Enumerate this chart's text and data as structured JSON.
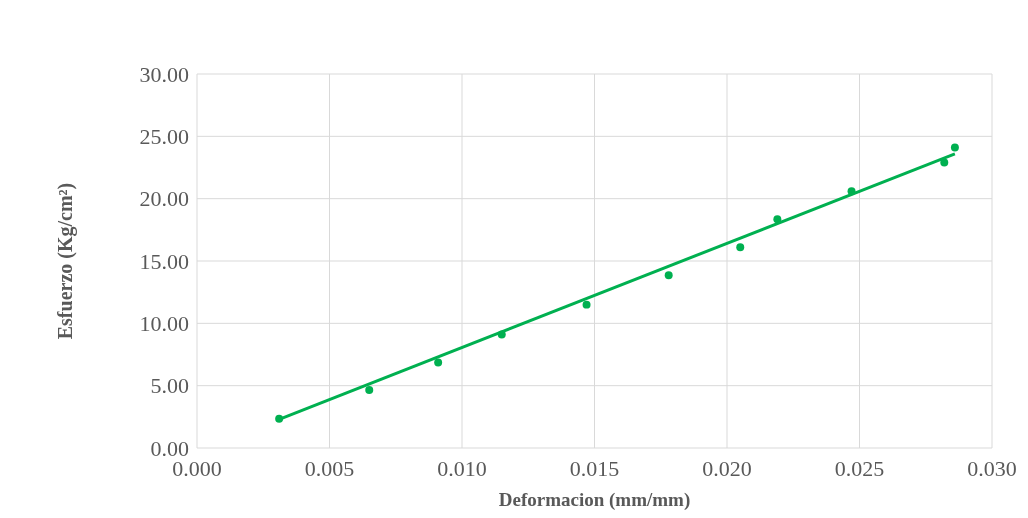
{
  "chart_data": {
    "type": "scatter",
    "xlabel": "Deformacion (mm/mm)",
    "ylabel": "Esfuerzo (Kg/cm²)",
    "xlim": [
      0,
      0.03
    ],
    "xticks": [
      {
        "value": 0,
        "label": "0.000"
      },
      {
        "value": 0.005,
        "label": "0.005"
      },
      {
        "value": 0.01,
        "label": "0.010"
      },
      {
        "value": 0.015,
        "label": "0.015"
      },
      {
        "value": 0.02,
        "label": "0.020"
      },
      {
        "value": 0.025,
        "label": "0.025"
      },
      {
        "value": 0.03,
        "label": "0.030"
      }
    ],
    "ylim": [
      0,
      30
    ],
    "yticks": [
      {
        "value": 0,
        "label": "0.00"
      },
      {
        "value": 5,
        "label": "5.00"
      },
      {
        "value": 10,
        "label": "10.00"
      },
      {
        "value": 15,
        "label": "15.00"
      },
      {
        "value": 20,
        "label": "20.00"
      },
      {
        "value": 25,
        "label": "25.00"
      },
      {
        "value": 30,
        "label": "30.00"
      }
    ],
    "grid": true,
    "series": [
      {
        "marker": "circle",
        "color": "#00b050",
        "x": [
          0.0031,
          0.0065,
          0.0091,
          0.0115,
          0.0147,
          0.0178,
          0.0205,
          0.0219,
          0.0247,
          0.0282,
          0.0286
        ],
        "values": [
          2.35,
          4.65,
          6.85,
          9.1,
          11.5,
          13.85,
          16.1,
          18.35,
          20.6,
          22.9,
          24.1
        ]
      },
      {
        "type": "line",
        "color": "#00b050",
        "line_style": "solid",
        "x": [
          0.0031,
          0.0286
        ],
        "values": [
          2.3,
          23.6
        ]
      }
    ]
  }
}
